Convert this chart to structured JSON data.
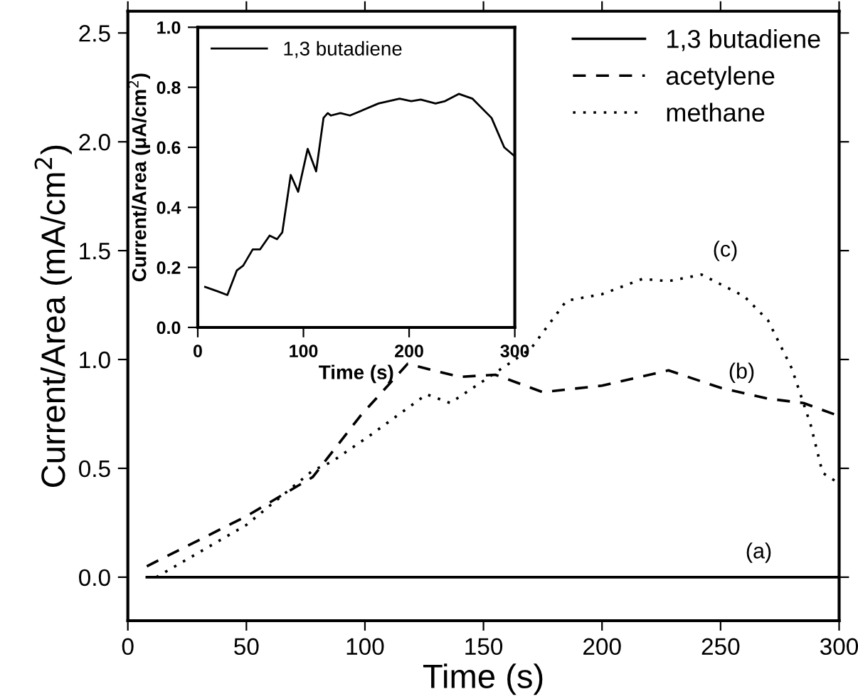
{
  "chart_data": [
    {
      "type": "line",
      "xlabel": "Time (s)",
      "ylabel": "Current/Area (mA/cm$^{2}$)",
      "xlim": [
        0,
        300
      ],
      "ylim": [
        -0.2,
        2.6
      ],
      "xticks": [
        0,
        50,
        100,
        150,
        200,
        250,
        300
      ],
      "yticks": [
        {
          "value": 0,
          "label": "0.0"
        },
        0.5,
        {
          "value": 1,
          "label": "1.0"
        },
        1.5,
        {
          "value": 2,
          "label": "2.0"
        },
        2.5
      ],
      "legend": "top right",
      "grid": false,
      "series": [
        {
          "name": "1,3 butadiene",
          "color": "#000000",
          "line_style": "solid",
          "x": [
            8,
            300
          ],
          "values": [
            0,
            0
          ]
        },
        {
          "name": "acetylene",
          "color": "#000000",
          "line_style": "dashed",
          "x": [
            8,
            50,
            78,
            98,
            118,
            140,
            155,
            175,
            200,
            228,
            250,
            270,
            285,
            300
          ],
          "values": [
            0.05,
            0.28,
            0.46,
            0.74,
            0.98,
            0.92,
            0.93,
            0.85,
            0.88,
            0.95,
            0.87,
            0.82,
            0.8,
            0.74
          ]
        },
        {
          "name": "methane",
          "color": "#000000",
          "line_style": "dotted",
          "x": [
            12,
            50,
            78,
            86,
            102,
            126,
            136,
            162,
            170,
            185,
            200,
            217,
            228,
            242,
            260,
            270,
            280,
            288,
            293,
            300
          ],
          "values": [
            0.0,
            0.24,
            0.49,
            0.53,
            0.65,
            0.84,
            0.8,
            0.99,
            1.05,
            1.27,
            1.3,
            1.37,
            1.36,
            1.39,
            1.29,
            1.18,
            0.96,
            0.7,
            0.48,
            0.43
          ]
        }
      ],
      "annotations": [
        "(a)",
        "(b)",
        "(c)"
      ]
    },
    {
      "type": "line",
      "xlabel": "Time (s)",
      "ylabel": "Current/Area (μA/cm$^{2}$)",
      "xlim": [
        0,
        300
      ],
      "ylim": [
        0,
        1
      ],
      "xticks": [
        0,
        100,
        200,
        300
      ],
      "yticks": [
        {
          "value": 0,
          "label": "0.0"
        },
        0.2,
        0.4,
        0.6,
        0.8,
        {
          "value": 1,
          "label": "1.0"
        }
      ],
      "legend": "top left",
      "grid": false,
      "series": [
        {
          "name": "1,3 butadiene",
          "color": "#000000",
          "line_style": "solid",
          "x": [
            7,
            19,
            28,
            37,
            43,
            52,
            59,
            68,
            75,
            80,
            88,
            95,
            104,
            112,
            119,
            123,
            126,
            135,
            144,
            171,
            191,
            202,
            211,
            225,
            234,
            247,
            260,
            278,
            290,
            300
          ],
          "values": [
            0.135,
            0.12,
            0.108,
            0.19,
            0.206,
            0.26,
            0.26,
            0.306,
            0.294,
            0.317,
            0.508,
            0.452,
            0.595,
            0.52,
            0.698,
            0.714,
            0.706,
            0.714,
            0.706,
            0.746,
            0.762,
            0.754,
            0.759,
            0.746,
            0.754,
            0.778,
            0.762,
            0.698,
            0.6,
            0.57
          ]
        }
      ]
    }
  ]
}
